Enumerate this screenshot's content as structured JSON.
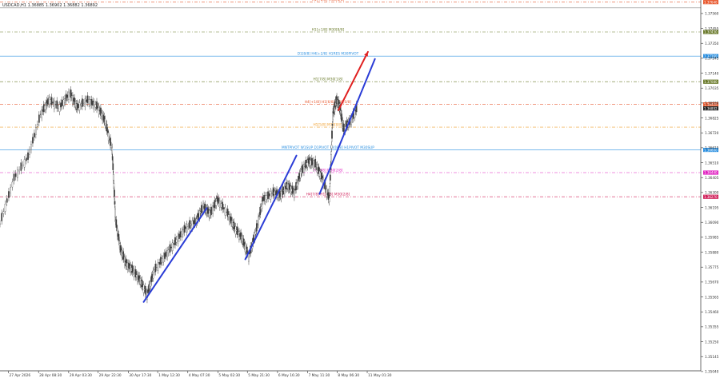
{
  "header": {
    "symbol_line": "USDCAD,H1  1.36885 1.36902 1.36882 1.36892"
  },
  "colors": {
    "background": "#ffffff",
    "candle": "#3a3a3a",
    "trend_blue": "#2a3cd6",
    "trend_red": "#e02020",
    "level_red": "#e8572c",
    "level_olive": "#6a7a2a",
    "level_blue": "#2a8fe0",
    "level_magenta": "#e020c0",
    "level_orange": "#f0a030",
    "level_crimson": "#d0205a",
    "grid": "#c8c8c8"
  },
  "price_axis": {
    "min": 1.35045,
    "max": 1.37655,
    "ticks": [
      {
        "label": "1.37560",
        "value": 1.3756
      },
      {
        "label": "1.37455",
        "value": 1.37455
      },
      {
        "label": "1.37350",
        "value": 1.3735
      },
      {
        "label": "1.37245",
        "value": 1.37245
      },
      {
        "label": "1.37140",
        "value": 1.3714
      },
      {
        "label": "1.37035",
        "value": 1.37035
      },
      {
        "label": "1.36930",
        "value": 1.3693
      },
      {
        "label": "1.36825",
        "value": 1.36825
      },
      {
        "label": "1.36720",
        "value": 1.3672
      },
      {
        "label": "1.36615",
        "value": 1.36615
      },
      {
        "label": "1.36510",
        "value": 1.3651
      },
      {
        "label": "1.36405",
        "value": 1.36405
      },
      {
        "label": "1.36300",
        "value": 1.363
      },
      {
        "label": "1.36195",
        "value": 1.36195
      },
      {
        "label": "1.36090",
        "value": 1.3609
      },
      {
        "label": "1.35985",
        "value": 1.35985
      },
      {
        "label": "1.35880",
        "value": 1.3588
      },
      {
        "label": "1.35775",
        "value": 1.35775
      },
      {
        "label": "1.35670",
        "value": 1.3567
      },
      {
        "label": "1.35565",
        "value": 1.35565
      },
      {
        "label": "1.35460",
        "value": 1.3546
      },
      {
        "label": "1.35355",
        "value": 1.35355
      },
      {
        "label": "1.35250",
        "value": 1.3525
      },
      {
        "label": "1.35145",
        "value": 1.35145
      },
      {
        "label": "1.35040",
        "value": 1.3504
      }
    ],
    "current_price_label": "1.36892"
  },
  "time_axis": {
    "labels": [
      {
        "label": "27 Apr 2026",
        "pos": 0.012
      },
      {
        "label": "28 Apr 08:30",
        "pos": 0.055
      },
      {
        "label": "29 Apr 03:30",
        "pos": 0.098
      },
      {
        "label": "29 Apr 22:30",
        "pos": 0.14
      },
      {
        "label": "30 Apr 17:30",
        "pos": 0.183
      },
      {
        "label": "1 May 12:30",
        "pos": 0.225
      },
      {
        "label": "4 May 07:30",
        "pos": 0.268
      },
      {
        "label": "5 May 02:30",
        "pos": 0.311
      },
      {
        "label": "5 May 21:30",
        "pos": 0.353
      },
      {
        "label": "6 May 16:30",
        "pos": 0.396
      },
      {
        "label": "7 May 11:30",
        "pos": 0.439
      },
      {
        "label": "8 May 06:30",
        "pos": 0.481
      },
      {
        "label": "11 May 01:30",
        "pos": 0.524
      }
    ]
  },
  "levels": [
    {
      "label": "H1[+2/8] M30[8/8]",
      "price": 1.3764,
      "color": "#e8572c",
      "style": "dash",
      "tag": "1.37640"
    },
    {
      "label": "",
      "price": 1.376,
      "color": "#888888",
      "style": "solid",
      "tag": ""
    },
    {
      "label": "H1[+1/8] M30[8/8]",
      "price": 1.3743,
      "color": "#6a7a2a",
      "style": "dash",
      "tag": "1.37430"
    },
    {
      "label": "D1[8/8] H4[+2/8] H1RES M30PIVOT",
      "price": 1.3726,
      "color": "#2a8fe0",
      "style": "solid",
      "tag": "1.37260"
    },
    {
      "label": "H1[7/8] M30[1/8]",
      "price": 1.3708,
      "color": "#6a7a2a",
      "style": "dash",
      "tag": "1.37080"
    },
    {
      "label": "H4[+1/8] H1[6/8] M30[0/8]",
      "price": 1.3692,
      "color": "#e8572c",
      "style": "dash",
      "tag": "1.36920"
    },
    {
      "label": "H1[5/8] M30[8/8]",
      "price": 1.3676,
      "color": "#f0a030",
      "style": "dash",
      "tag": ""
    },
    {
      "label": "MNTPIVOT W1SUP D1PIVOT H4[8/8] H1PIVOT M30SUP",
      "price": 1.366,
      "color": "#2a8fe0",
      "style": "solid",
      "tag": "1.36600"
    },
    {
      "label": "H1[3/8] M30[2/8]",
      "price": 1.3644,
      "color": "#e020c0",
      "style": "dash",
      "tag": "1.36440"
    },
    {
      "label": "H4[7/8] H1[2/8] M30[2/8]",
      "price": 1.3627,
      "color": "#d0205a",
      "style": "dash",
      "tag": "1.36270"
    }
  ],
  "trend_lines": [
    {
      "color": "#2a3cd6",
      "from": [
        0.205,
        1.3553
      ],
      "to": [
        0.295,
        1.3619
      ]
    },
    {
      "color": "#2a3cd6",
      "from": [
        0.35,
        1.3583
      ],
      "to": [
        0.423,
        1.3656
      ]
    },
    {
      "color": "#2a3cd6",
      "from": [
        0.456,
        1.3629
      ],
      "to": [
        0.535,
        1.3724
      ]
    },
    {
      "color": "#e02020",
      "from": [
        0.483,
        1.3688
      ],
      "to": [
        0.525,
        1.3729
      ]
    }
  ]
}
